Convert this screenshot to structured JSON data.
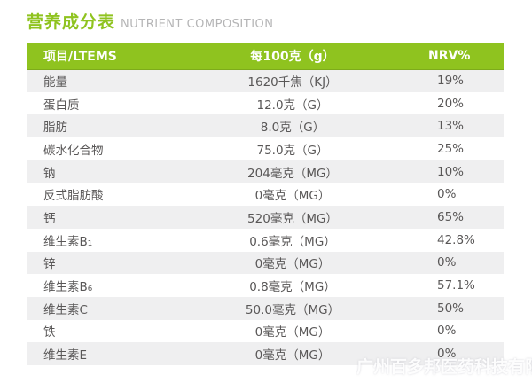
{
  "page": {
    "title_cn": "营养成分表",
    "title_en": "NUTRIENT COMPOSITION",
    "watermark": "广州百多邦医药科技有限公司"
  },
  "table": {
    "columns": [
      "项目/LTEMS",
      "每100克（g）",
      "NRV%"
    ],
    "rows": [
      {
        "item": "能量",
        "value": "1620千焦（KJ）",
        "nrv": "19%"
      },
      {
        "item": "蛋白质",
        "value": "12.0克（G）",
        "nrv": "20%"
      },
      {
        "item": "脂肪",
        "value": "8.0克（G）",
        "nrv": "13%"
      },
      {
        "item": "碳水化合物",
        "value": "75.0克（G）",
        "nrv": "25%"
      },
      {
        "item": "钠",
        "value": "204毫克（MG）",
        "nrv": "10%"
      },
      {
        "item": "反式脂肪酸",
        "value": "0毫克（MG）",
        "nrv": "0%"
      },
      {
        "item": "钙",
        "value": "520毫克（MG）",
        "nrv": "65%"
      },
      {
        "item": "维生素B₁",
        "value": "0.6毫克（MG）",
        "nrv": "42.8%"
      },
      {
        "item": "锌",
        "value": "0毫克（MG）",
        "nrv": "0%"
      },
      {
        "item": "维生素B₆",
        "value": "0.8毫克（MG）",
        "nrv": "57.1%"
      },
      {
        "item": "维生素C",
        "value": "50.0毫克（MG）",
        "nrv": "50%"
      },
      {
        "item": "铁",
        "value": "0毫克（MG）",
        "nrv": "0%"
      },
      {
        "item": "维生素E",
        "value": "0毫克（MG）",
        "nrv": "0%"
      }
    ]
  },
  "colors": {
    "accent_green": "#8fc31f",
    "header_text": "#ffffff",
    "row_alt_bg": "#efeff0",
    "row_bg": "#ffffff",
    "body_text": "#595757",
    "subtitle_text": "#b5b5b6"
  }
}
